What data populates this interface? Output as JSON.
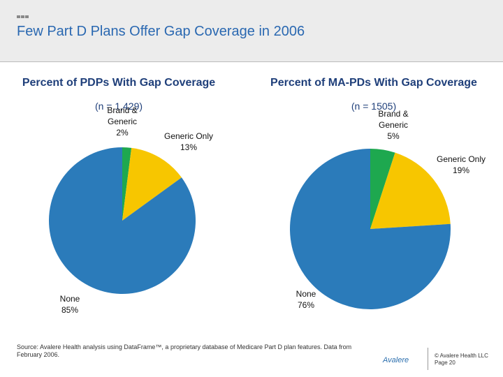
{
  "title": "Few Part D Plans Offer Gap Coverage in 2006",
  "chart_data": [
    {
      "type": "pie",
      "title": "Percent of PDPs With Gap Coverage",
      "subtitle": "(n = 1,429)",
      "categories": [
        "Brand & Generic",
        "Generic Only",
        "None"
      ],
      "values": [
        2,
        13,
        85
      ],
      "value_labels": [
        "2%",
        "13%",
        "85%"
      ],
      "colors": [
        "#1ea84f",
        "#f7c600",
        "#2b7bba"
      ]
    },
    {
      "type": "pie",
      "title": "Percent of MA-PDs With Gap Coverage",
      "subtitle": "(n = 1505)",
      "categories": [
        "Brand & Generic",
        "Generic Only",
        "None"
      ],
      "values": [
        5,
        19,
        76
      ],
      "value_labels": [
        "5%",
        "19%",
        "76%"
      ],
      "colors": [
        "#1ea84f",
        "#f7c600",
        "#2b7bba"
      ]
    }
  ],
  "source": "Source:  Avalere Health analysis using DataFrame™, a proprietary database of Medicare Part D plan features. Data from February 2006.",
  "logo": "Avalere",
  "footer": [
    "© Avalere Health LLC",
    "Page 20"
  ]
}
